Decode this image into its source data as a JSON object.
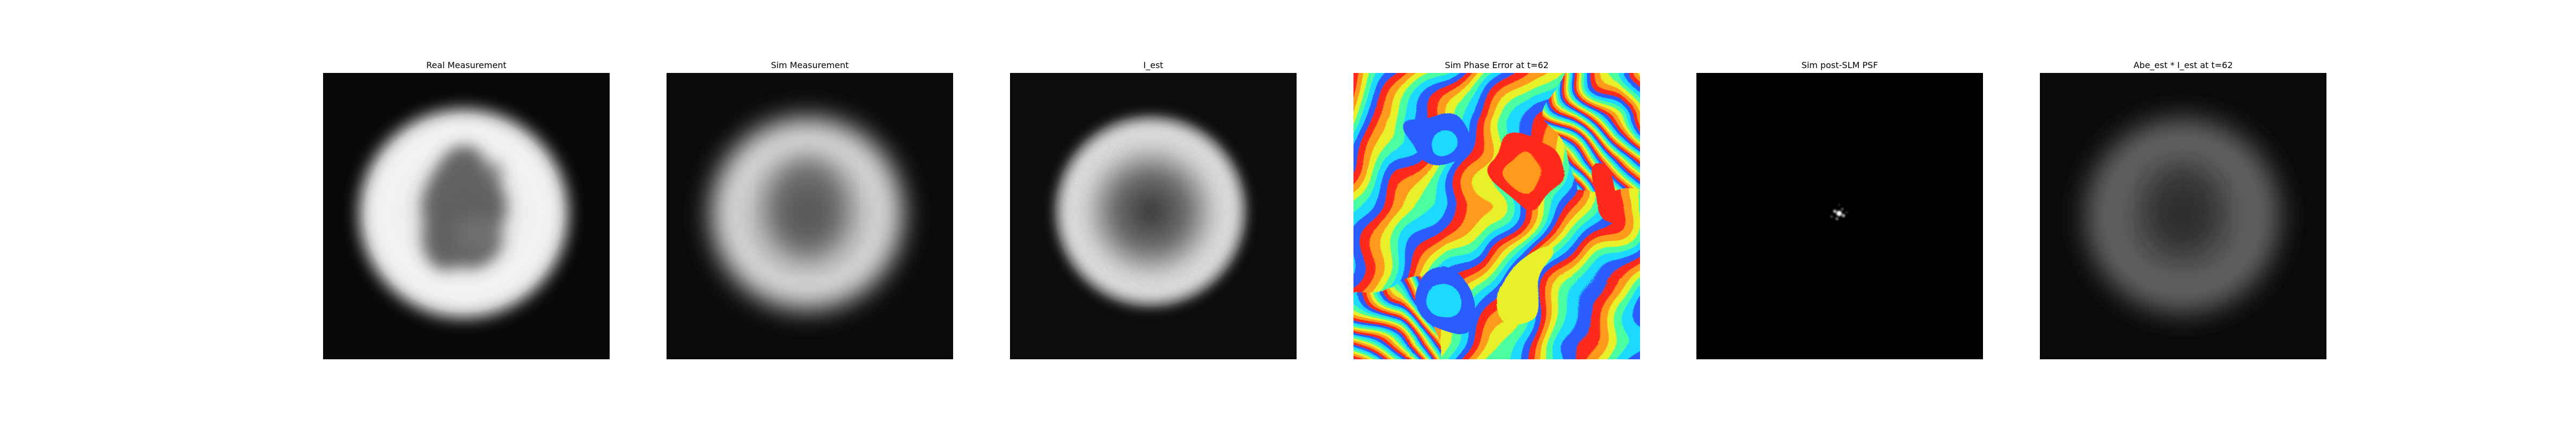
{
  "figure": {
    "panels": [
      {
        "title": "Real Measurement"
      },
      {
        "title": "Sim Measurement"
      },
      {
        "title": "I_est"
      },
      {
        "title": "Sim Phase Error at t=62"
      },
      {
        "title": "Sim post-SLM PSF"
      },
      {
        "title": "Abe_est * I_est at t=62"
      }
    ]
  },
  "colors": {
    "background": "#ffffff",
    "image_background": "#000000",
    "grayscale_bright": "#f2f2f2",
    "phase_red": "#ff2a1a",
    "phase_yellow": "#e8f02a",
    "phase_cyan": "#1ad9ff",
    "phase_blue": "#2a5cff",
    "phase_green": "#4cffa0"
  }
}
